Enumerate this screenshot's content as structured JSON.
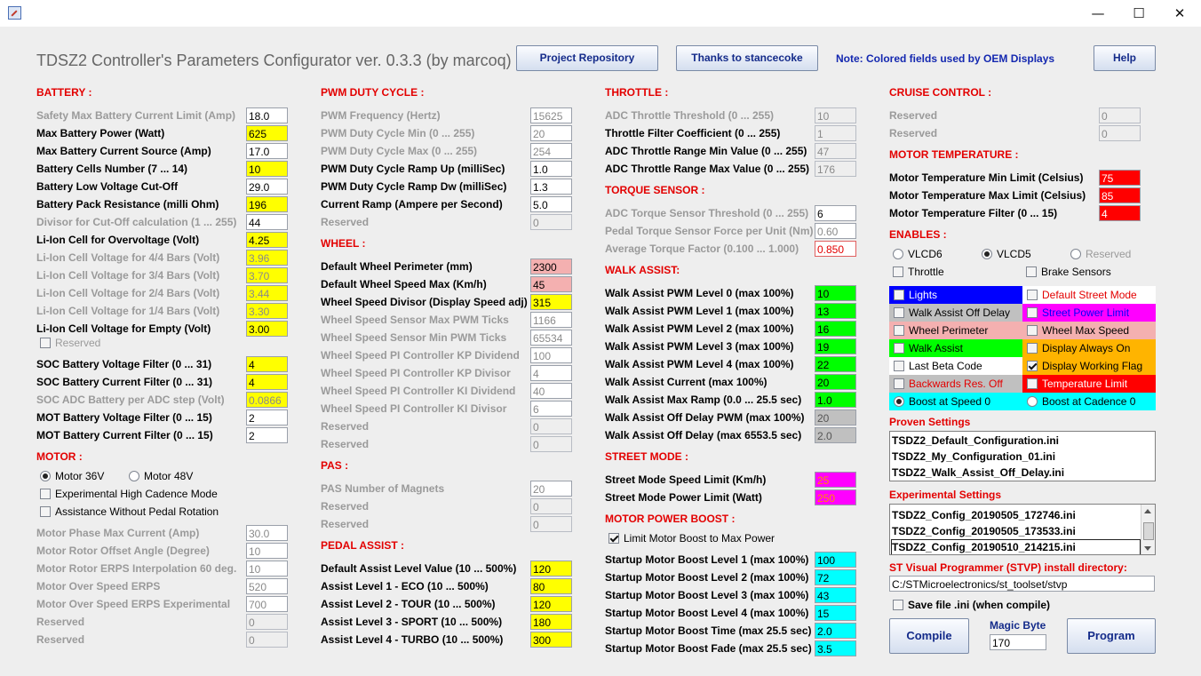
{
  "window": {
    "minimize": "—",
    "maximize": "☐",
    "close": "✕"
  },
  "header": {
    "title": "TDSZ2 Controller's Parameters Configurator ver. 0.3.3 (by marcoq)",
    "repo_button": "Project Repository",
    "thanks_button": "Thanks to stancecoke",
    "note": "Note: Colored fields used by OEM Displays",
    "help_button": "Help"
  },
  "colors": {
    "yellow": "#ffff00",
    "pink": "#f4b0b0",
    "red": "#ff0000",
    "green": "#00ff00",
    "cyan": "#00ffff",
    "magenta": "#ff00ff",
    "blue": "#0000ff",
    "orange": "#ffb400",
    "gray": "#c0c0c0",
    "section_red": "#e30000",
    "button_text": "#142b8a"
  },
  "battery": {
    "title": "BATTERY :",
    "rows": [
      {
        "label": "Safety Max Battery Current Limit (Amp)",
        "value": "18.0"
      },
      {
        "label": "Max Battery Power (Watt)",
        "value": "625"
      },
      {
        "label": "Max Battery Current Source (Amp)",
        "value": "17.0"
      },
      {
        "label": "Battery Cells Number (7 ... 14)",
        "value": "10"
      },
      {
        "label": "Battery Low Voltage Cut-Off",
        "value": "29.0"
      },
      {
        "label": "Battery Pack Resistance (milli Ohm)",
        "value": "196"
      },
      {
        "label": "Divisor for Cut-Off calculation (1 ... 255)",
        "value": "44"
      },
      {
        "label": "Li-Ion Cell for Overvoltage (Volt)",
        "value": "4.25"
      },
      {
        "label": "Li-Ion Cell Voltage for 4/4 Bars (Volt)",
        "value": "3.96"
      },
      {
        "label": "Li-Ion Cell Voltage for 3/4 Bars (Volt)",
        "value": "3.70"
      },
      {
        "label": "Li-Ion Cell Voltage for 2/4 Bars (Volt)",
        "value": "3.44"
      },
      {
        "label": "Li-Ion Cell Voltage for 1/4 Bars (Volt)",
        "value": "3.30"
      },
      {
        "label": "Li-Ion Cell Voltage for Empty (Volt)",
        "value": "3.00"
      }
    ],
    "reserved_check": "Reserved",
    "rows2": [
      {
        "label": "SOC Battery Voltage Filter (0 ... 31)",
        "value": "4"
      },
      {
        "label": "SOC Battery Current Filter (0 ... 31)",
        "value": "4"
      },
      {
        "label": "SOC ADC Battery per ADC step (Volt)",
        "value": "0.0866"
      },
      {
        "label": "MOT Battery Voltage Filter (0 ... 15)",
        "value": "2"
      },
      {
        "label": "MOT Battery Current Filter (0 ... 15)",
        "value": "2"
      }
    ]
  },
  "motor": {
    "title": "MOTOR :",
    "radio36": "Motor 36V",
    "radio48": "Motor 48V",
    "check1": "Experimental High Cadence Mode",
    "check2": "Assistance Without Pedal Rotation",
    "rows": [
      {
        "label": "Motor Phase Max Current (Amp)",
        "value": "30.0"
      },
      {
        "label": "Motor Rotor Offset Angle (Degree)",
        "value": "10"
      },
      {
        "label": "Motor Rotor ERPS Interpolation 60 deg.",
        "value": "10"
      },
      {
        "label": "Motor Over Speed ERPS",
        "value": "520"
      },
      {
        "label": "Motor Over Speed ERPS Experimental",
        "value": "700"
      },
      {
        "label": "Reserved",
        "value": "0"
      },
      {
        "label": "Reserved",
        "value": "0"
      }
    ]
  },
  "pwm": {
    "title": "PWM DUTY CYCLE :",
    "rows": [
      {
        "label": "PWM Frequency (Hertz)",
        "value": "15625"
      },
      {
        "label": "PWM Duty Cycle Min (0 ... 255)",
        "value": "20"
      },
      {
        "label": "PWM Duty Cycle Max (0 ... 255)",
        "value": "254"
      },
      {
        "label": "PWM Duty Cycle Ramp Up (milliSec)",
        "value": "1.0"
      },
      {
        "label": "PWM Duty Cycle Ramp Dw (milliSec)",
        "value": "1.3"
      },
      {
        "label": "Current Ramp (Ampere per Second)",
        "value": "5.0"
      },
      {
        "label": "Reserved",
        "value": "0"
      }
    ]
  },
  "wheel": {
    "title": "WHEEL :",
    "rows": [
      {
        "label": "Default Wheel Perimeter (mm)",
        "value": "2300"
      },
      {
        "label": "Default Wheel Speed Max (Km/h)",
        "value": "45"
      },
      {
        "label": "Wheel Speed Divisor (Display Speed adj)",
        "value": "315"
      },
      {
        "label": "Wheel Speed Sensor Max PWM Ticks",
        "value": "1166"
      },
      {
        "label": "Wheel Speed Sensor Min PWM Ticks",
        "value": "65534"
      },
      {
        "label": "Wheel Speed PI Controller KP Dividend",
        "value": "100"
      },
      {
        "label": "Wheel Speed PI Controller KP Divisor",
        "value": "4"
      },
      {
        "label": "Wheel Speed PI Controller KI Dividend",
        "value": "40"
      },
      {
        "label": "Wheel Speed PI Controller KI Divisor",
        "value": "6"
      },
      {
        "label": "Reserved",
        "value": "0"
      },
      {
        "label": "Reserved",
        "value": "0"
      }
    ]
  },
  "pas": {
    "title": "PAS :",
    "rows": [
      {
        "label": "PAS Number of Magnets",
        "value": "20"
      },
      {
        "label": "Reserved",
        "value": "0"
      },
      {
        "label": "Reserved",
        "value": "0"
      }
    ]
  },
  "pedal": {
    "title": "PEDAL ASSIST :",
    "rows": [
      {
        "label": "Default Assist Level Value (10 ... 500%)",
        "value": "120"
      },
      {
        "label": "Assist Level 1 - ECO (10 ... 500%)",
        "value": "80"
      },
      {
        "label": "Assist Level 2 - TOUR (10 ... 500%)",
        "value": "120"
      },
      {
        "label": "Assist Level 3 - SPORT (10 ... 500%)",
        "value": "180"
      },
      {
        "label": "Assist Level 4 - TURBO (10 ... 500%)",
        "value": "300"
      }
    ]
  },
  "throttle": {
    "title": "THROTTLE :",
    "rows": [
      {
        "label": "ADC Throttle Threshold (0 ... 255)",
        "value": "10"
      },
      {
        "label": "Throttle Filter Coefficient (0 ... 255)",
        "value": "1"
      },
      {
        "label": "ADC Throttle Range Min Value (0 ... 255)",
        "value": "47"
      },
      {
        "label": "ADC Throttle Range Max Value (0 ... 255)",
        "value": "176"
      }
    ]
  },
  "torque": {
    "title": "TORQUE SENSOR :",
    "rows": [
      {
        "label": "ADC Torque Sensor Threshold (0 ... 255)",
        "value": "6"
      },
      {
        "label": "Pedal Torque Sensor Force per Unit (Nm)",
        "value": "0.60"
      },
      {
        "label": "Average Torque Factor (0.100 ... 1.000)",
        "value": "0.850"
      }
    ]
  },
  "walk": {
    "title": "WALK ASSIST:",
    "rows": [
      {
        "label": "Walk Assist PWM Level 0 (max 100%)",
        "value": "10"
      },
      {
        "label": "Walk Assist PWM Level 1 (max 100%)",
        "value": "13"
      },
      {
        "label": "Walk Assist PWM Level 2 (max 100%)",
        "value": "16"
      },
      {
        "label": "Walk Assist PWM Level 3 (max 100%)",
        "value": "19"
      },
      {
        "label": "Walk Assist PWM Level 4 (max 100%)",
        "value": "22"
      },
      {
        "label": "Walk Assist Current (max 100%)",
        "value": "20"
      },
      {
        "label": "Walk Assist Max Ramp (0.0 ... 25.5 sec)",
        "value": "1.0"
      },
      {
        "label": "Walk Assist Off Delay PWM (max 100%)",
        "value": "20"
      },
      {
        "label": "Walk Assist Off Delay (max 6553.5 sec)",
        "value": "2.0"
      }
    ]
  },
  "street": {
    "title": "STREET MODE :",
    "rows": [
      {
        "label": "Street Mode Speed Limit (Km/h)",
        "value": "25"
      },
      {
        "label": "Street Mode Power Limit (Watt)",
        "value": "250"
      }
    ]
  },
  "boost": {
    "title": "MOTOR POWER BOOST :",
    "check": "Limit Motor Boost to Max Power",
    "rows": [
      {
        "label": "Startup Motor Boost Level 1 (max 100%)",
        "value": "100"
      },
      {
        "label": "Startup Motor Boost Level 2 (max 100%)",
        "value": "72"
      },
      {
        "label": "Startup Motor Boost Level 3 (max 100%)",
        "value": "43"
      },
      {
        "label": "Startup Motor Boost Level 4 (max 100%)",
        "value": "15"
      },
      {
        "label": "Startup Motor Boost Time (max 25.5 sec)",
        "value": "2.0"
      },
      {
        "label": "Startup Motor Boost Fade (max 25.5 sec)",
        "value": "3.5"
      }
    ]
  },
  "cruise": {
    "title": "CRUISE CONTROL :",
    "rows": [
      {
        "label": "Reserved",
        "value": "0"
      },
      {
        "label": "Reserved",
        "value": "0"
      }
    ]
  },
  "temp": {
    "title": "MOTOR TEMPERATURE :",
    "rows": [
      {
        "label": "Motor Temperature Min Limit (Celsius)",
        "value": "75"
      },
      {
        "label": "Motor Temperature Max Limit (Celsius)",
        "value": "85"
      },
      {
        "label": "Motor Temperature Filter (0 ... 15)",
        "value": "4"
      }
    ]
  },
  "enables": {
    "title": "ENABLES :",
    "vlcd6": "VLCD6",
    "vlcd5": "VLCD5",
    "reserved": "Reserved",
    "throttle": "Throttle",
    "brake": "Brake Sensors",
    "lights": "Lights",
    "default_street": "Default Street Mode",
    "walk_off_delay": "Walk Assist Off Delay",
    "street_power": "Street Power Limit",
    "wheel_perimeter": "Wheel Perimeter",
    "wheel_max_speed": "Wheel Max Speed",
    "walk_assist": "Walk Assist",
    "display_always_on": "Display Always On",
    "last_beta": "Last Beta Code",
    "display_working": "Display Working Flag",
    "backwards": "Backwards Res. Off",
    "temperature_limit": "Temperature Limit",
    "boost_speed": "Boost at Speed 0",
    "boost_cadence": "Boost at Cadence 0"
  },
  "proven": {
    "title": "Proven Settings",
    "items": [
      "TSDZ2_Default_Configuration.ini",
      "TSDZ2_My_Configuration_01.ini",
      "TSDZ2_Walk_Assist_Off_Delay.ini"
    ]
  },
  "experimental": {
    "title": "Experimental Settings",
    "items": [
      "TSDZ2_Config_20190505_172746.ini",
      "TSDZ2_Config_20190505_173533.ini",
      "TSDZ2_Config_20190510_214215.ini"
    ]
  },
  "stvp": {
    "title": "ST Visual Programmer (STVP) install directory:",
    "path": "C:/STMicroelectronics/st_toolset/stvp",
    "save_ini": "Save file .ini (when compile)"
  },
  "actions": {
    "compile": "Compile",
    "magic_label": "Magic Byte",
    "magic_value": "170",
    "program": "Program"
  }
}
